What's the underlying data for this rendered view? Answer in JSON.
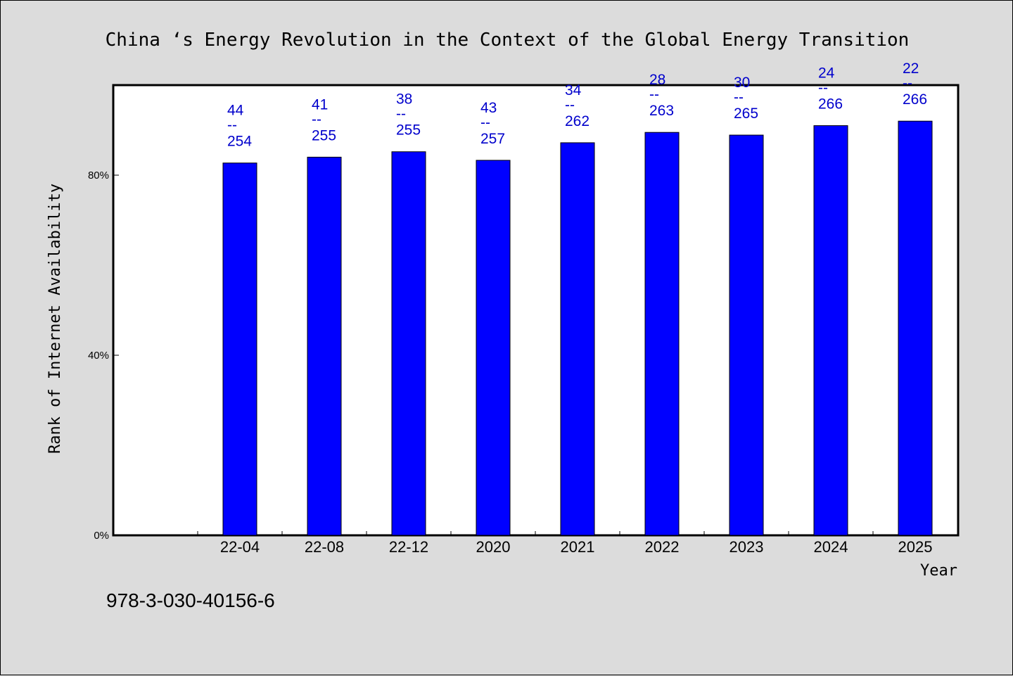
{
  "chart_data": {
    "type": "bar",
    "title": "China ‘s Energy Revolution in the Context of the Global Energy Transition",
    "xlabel": "Year",
    "ylabel": "Rank of Internet Availability",
    "categories": [
      "22-04",
      "22-08",
      "22-12",
      "2020",
      "2021",
      "2022",
      "2023",
      "2024",
      "2025"
    ],
    "values": [
      82.7,
      84.0,
      85.2,
      83.3,
      87.2,
      89.5,
      88.9,
      91.0,
      92.0
    ],
    "data_labels": [
      {
        "top": "44",
        "sep": "--",
        "bottom": "254"
      },
      {
        "top": "41",
        "sep": "--",
        "bottom": "255"
      },
      {
        "top": "38",
        "sep": "--",
        "bottom": "255"
      },
      {
        "top": "43",
        "sep": "--",
        "bottom": "257"
      },
      {
        "top": "34",
        "sep": "--",
        "bottom": "262"
      },
      {
        "top": "28",
        "sep": "--",
        "bottom": "263"
      },
      {
        "top": "30",
        "sep": "--",
        "bottom": "265"
      },
      {
        "top": "24",
        "sep": "--",
        "bottom": "266"
      },
      {
        "top": "22",
        "sep": "--",
        "bottom": "266"
      }
    ],
    "yticks": [
      0,
      40,
      80
    ],
    "ytick_labels": [
      "0%",
      "40%",
      "80%"
    ],
    "ylim": [
      0,
      100
    ],
    "grid": false,
    "bar_color": "#0000ff",
    "label_color": "#0000cc"
  },
  "footer": "978-3-030-40156-6"
}
